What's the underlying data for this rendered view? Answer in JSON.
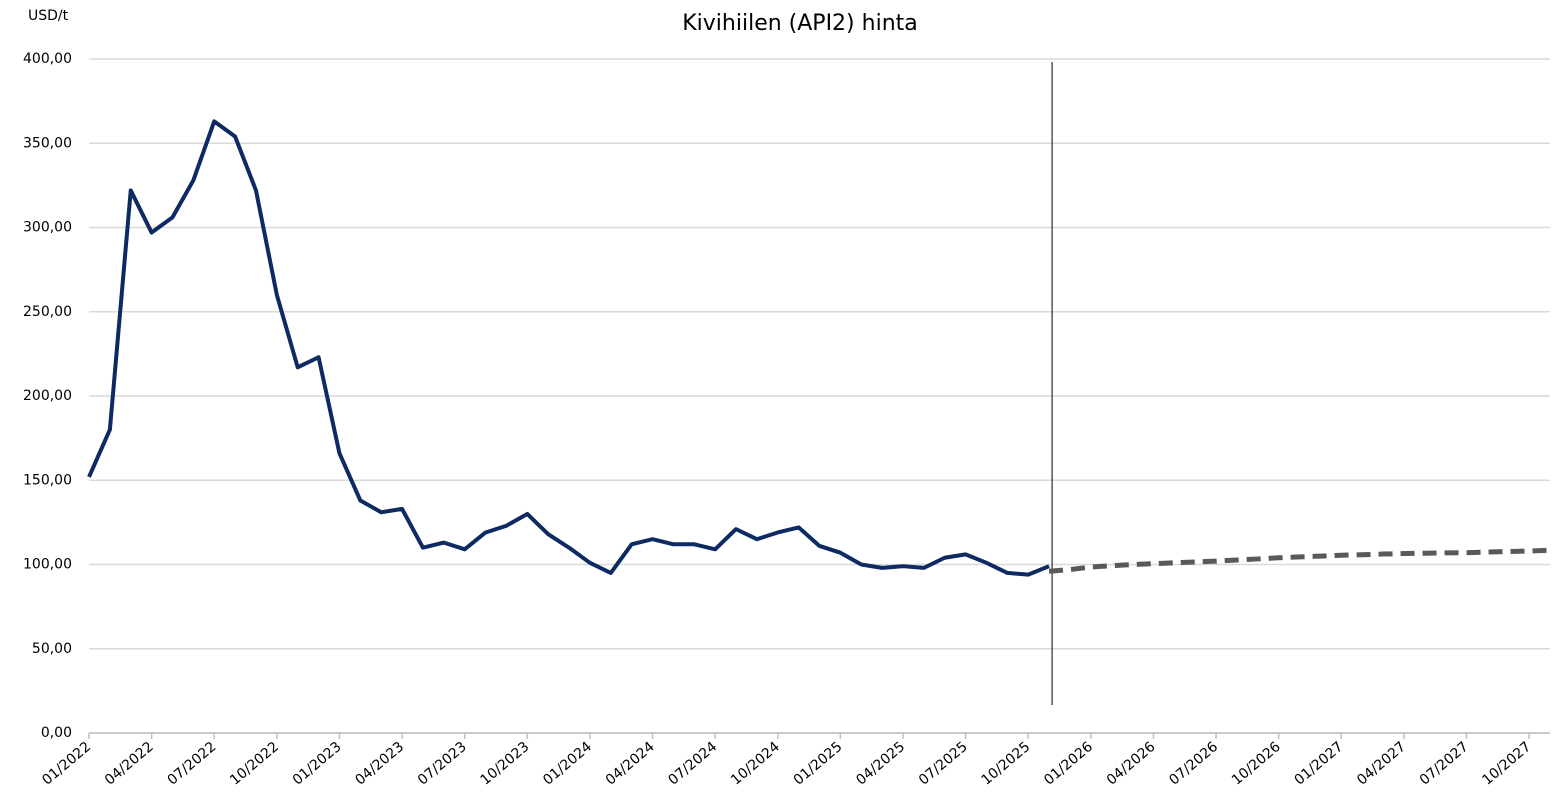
{
  "chart_data": {
    "type": "line",
    "title": "Kivihiilen (API2) hinta",
    "y_axis_label": "USD/t",
    "categories": [
      "01/2022",
      null,
      null,
      "04/2022",
      null,
      null,
      "07/2022",
      null,
      null,
      "10/2022",
      null,
      null,
      "01/2023",
      null,
      null,
      "04/2023",
      null,
      null,
      "07/2023",
      null,
      null,
      "10/2023",
      null,
      null,
      "01/2024",
      null,
      null,
      "04/2024",
      null,
      null,
      "07/2024",
      null,
      null,
      "10/2024",
      null,
      null,
      "01/2025",
      null,
      null,
      "04/2025",
      null,
      null,
      "07/2025",
      null,
      null,
      "10/2025",
      null,
      null,
      "01/2026",
      null,
      null,
      "04/2026",
      null,
      null,
      "07/2026",
      null,
      null,
      "10/2026",
      null,
      null,
      "01/2027",
      null,
      null,
      "04/2027",
      null,
      null,
      "07/2027",
      null,
      null,
      "10/2027",
      null
    ],
    "series": [
      {
        "color": "#0d2a63",
        "dashed": false,
        "values": [
          152,
          180,
          322,
          297,
          306,
          328,
          363,
          354,
          322,
          260,
          217,
          223,
          166,
          138,
          131,
          133,
          110,
          113,
          109,
          119,
          123,
          130,
          118,
          110,
          101,
          95,
          112,
          115,
          112,
          112,
          109,
          121,
          115,
          119,
          122,
          111,
          107,
          100,
          98,
          99,
          98,
          104,
          106,
          101,
          95,
          94,
          99,
          null,
          null,
          null,
          null,
          null,
          null,
          null,
          null,
          null,
          null,
          null,
          null,
          null,
          null,
          null,
          null,
          null,
          null,
          null,
          null,
          null,
          null,
          null,
          null
        ]
      },
      {
        "color": "#595959",
        "dashed": true,
        "values": [
          null,
          null,
          null,
          null,
          null,
          null,
          null,
          null,
          null,
          null,
          null,
          null,
          null,
          null,
          null,
          null,
          null,
          null,
          null,
          null,
          null,
          null,
          null,
          null,
          null,
          null,
          null,
          null,
          null,
          null,
          null,
          null,
          null,
          null,
          null,
          null,
          null,
          null,
          null,
          null,
          null,
          null,
          null,
          null,
          null,
          null,
          96,
          97,
          98.5,
          99.3,
          100,
          100.5,
          101,
          101.5,
          102,
          102.7,
          103.3,
          104,
          104.5,
          105,
          105.5,
          105.8,
          106.2,
          106.5,
          106.7,
          106.9,
          107,
          107.4,
          107.7,
          108,
          108.5
        ]
      }
    ],
    "ylim": [
      0,
      400
    ],
    "yticks": [
      {
        "value": 0,
        "label": "0,00"
      },
      {
        "value": 50,
        "label": "50,00"
      },
      {
        "value": 100,
        "label": "100,00"
      },
      {
        "value": 150,
        "label": "150,00"
      },
      {
        "value": 200,
        "label": "200,00"
      },
      {
        "value": 250,
        "label": "250,00"
      },
      {
        "value": 300,
        "label": "300,00"
      },
      {
        "value": 350,
        "label": "350,00"
      },
      {
        "value": 400,
        "label": "400,00"
      }
    ],
    "grid": true
  }
}
